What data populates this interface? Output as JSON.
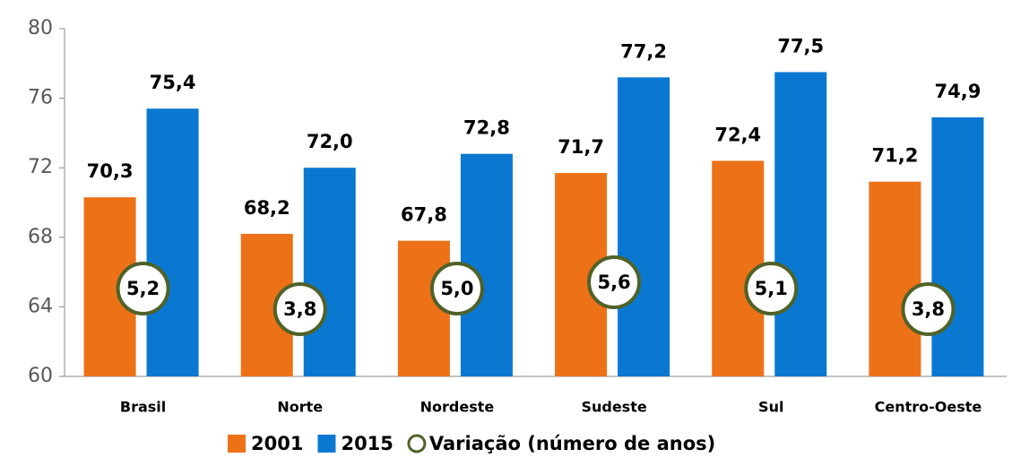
{
  "chart_data": {
    "type": "bar",
    "categories": [
      "Brasil",
      "Norte",
      "Nordeste",
      "Sudeste",
      "Sul",
      "Centro-Oeste"
    ],
    "series": [
      {
        "name": "2001",
        "color": "#ED7117",
        "values": [
          70.3,
          68.2,
          67.8,
          71.7,
          72.4,
          71.2
        ],
        "value_labels": [
          "70,3",
          "68,2",
          "67,8",
          "71,7",
          "72,4",
          "71,2"
        ]
      },
      {
        "name": "2015",
        "color": "#0A78D0",
        "values": [
          75.4,
          72.0,
          72.8,
          77.2,
          77.5,
          74.9
        ],
        "value_labels": [
          "75,4",
          "72,0",
          "72,8",
          "77,2",
          "77,5",
          "74,9"
        ]
      }
    ],
    "variation": {
      "name": "Variação (número de anos)",
      "color": "#4F6228",
      "values": [
        5.2,
        3.8,
        5.0,
        5.6,
        5.1,
        3.8
      ],
      "value_labels": [
        "5,2",
        "3,8",
        "5,0",
        "5,6",
        "5,1",
        "3,8"
      ]
    },
    "ylim": [
      60,
      80
    ],
    "yticks": [
      60,
      64,
      68,
      72,
      76,
      80
    ],
    "legend": "bottom"
  }
}
